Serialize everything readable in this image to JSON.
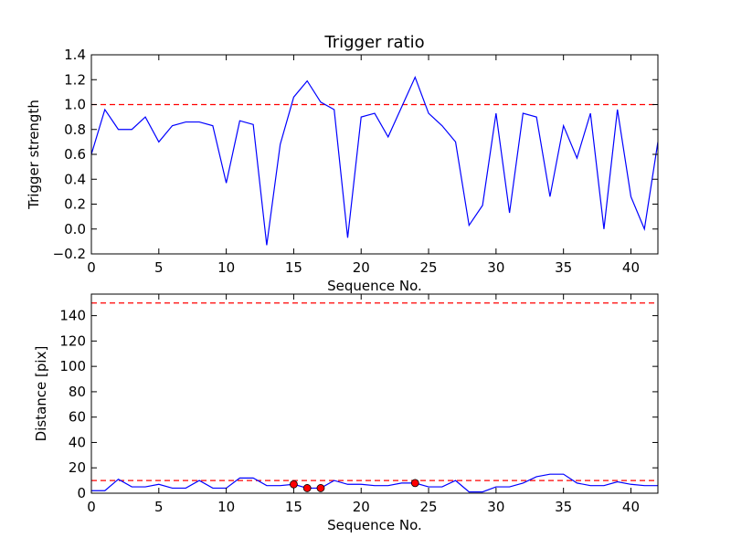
{
  "chart_data": [
    {
      "type": "line",
      "title": "Trigger ratio",
      "xlabel": "Sequence No.",
      "ylabel": "Trigger strength",
      "xlim": [
        0,
        42
      ],
      "ylim": [
        -0.2,
        1.4
      ],
      "xticks": [
        0,
        5,
        10,
        15,
        20,
        25,
        30,
        35,
        40
      ],
      "yticks": [
        -0.2,
        0.0,
        0.2,
        0.4,
        0.6,
        0.8,
        1.0,
        1.2,
        1.4
      ],
      "xtick_labels": [
        "0",
        "5",
        "10",
        "15",
        "20",
        "25",
        "30",
        "35",
        "40"
      ],
      "ytick_labels": [
        "−0.2",
        "0.0",
        "0.2",
        "0.4",
        "0.6",
        "0.8",
        "1.0",
        "1.2",
        "1.4"
      ],
      "grid": false,
      "threshold": 1.0,
      "threshold_color": "#ff0000",
      "line_color": "#0000ff",
      "x": [
        0,
        1,
        2,
        3,
        4,
        5,
        6,
        7,
        8,
        9,
        10,
        11,
        12,
        13,
        14,
        15,
        16,
        17,
        18,
        19,
        20,
        21,
        22,
        23,
        24,
        25,
        26,
        27,
        28,
        29,
        30,
        31,
        32,
        33,
        34,
        35,
        36,
        37,
        38,
        39,
        40,
        41,
        42
      ],
      "y": [
        0.6,
        0.96,
        0.8,
        0.8,
        0.9,
        0.7,
        0.83,
        0.86,
        0.86,
        0.83,
        0.37,
        0.87,
        0.84,
        -0.13,
        0.68,
        1.06,
        1.19,
        1.02,
        0.96,
        -0.07,
        0.9,
        0.93,
        0.74,
        0.98,
        1.22,
        0.93,
        0.83,
        0.7,
        0.03,
        0.19,
        0.93,
        0.13,
        0.93,
        0.9,
        0.26,
        0.83,
        0.57,
        0.93,
        0.0,
        0.96,
        0.26,
        0.0,
        0.7
      ]
    },
    {
      "type": "line",
      "title": "",
      "xlabel": "Sequence No.",
      "ylabel": "Distance [pix]",
      "xlim": [
        0,
        42
      ],
      "ylim": [
        0,
        157
      ],
      "xticks": [
        0,
        5,
        10,
        15,
        20,
        25,
        30,
        35,
        40
      ],
      "yticks": [
        0,
        20,
        40,
        60,
        80,
        100,
        120,
        140
      ],
      "xtick_labels": [
        "0",
        "5",
        "10",
        "15",
        "20",
        "25",
        "30",
        "35",
        "40"
      ],
      "ytick_labels": [
        "0",
        "20",
        "40",
        "60",
        "80",
        "100",
        "120",
        "140"
      ],
      "grid": false,
      "thresholds": [
        150,
        10
      ],
      "threshold_color": "#ff0000",
      "line_color": "#0000ff",
      "marker_color": "#ff0000",
      "x": [
        0,
        1,
        2,
        3,
        4,
        5,
        6,
        7,
        8,
        9,
        10,
        11,
        12,
        13,
        14,
        15,
        16,
        17,
        18,
        19,
        20,
        21,
        22,
        23,
        24,
        25,
        26,
        27,
        28,
        29,
        30,
        31,
        32,
        33,
        34,
        35,
        36,
        37,
        38,
        39,
        40,
        41,
        42
      ],
      "y": [
        2,
        2,
        11,
        5,
        5,
        7,
        4,
        4,
        10,
        4,
        4,
        12,
        12,
        6,
        6,
        7,
        4,
        4,
        10,
        7,
        7,
        6,
        6,
        8,
        8,
        5,
        5,
        10,
        1,
        1,
        5,
        5,
        8,
        13,
        15,
        15,
        8,
        6,
        6,
        9,
        7,
        6,
        6
      ],
      "highlight_points": [
        {
          "x": 15,
          "y": 7
        },
        {
          "x": 16,
          "y": 4
        },
        {
          "x": 17,
          "y": 4
        },
        {
          "x": 24,
          "y": 8
        }
      ]
    }
  ]
}
